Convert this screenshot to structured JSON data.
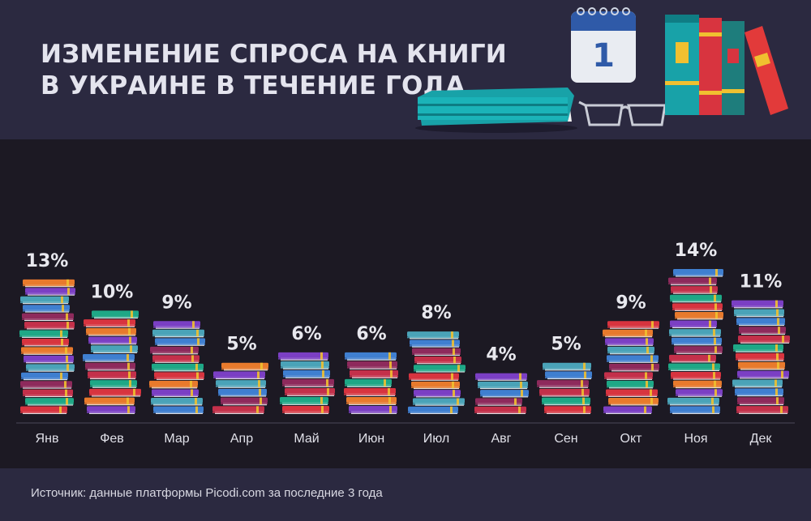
{
  "header": {
    "title_line1": "ИЗМЕНЕНИЕ СПРОСА НА КНИГИ",
    "title_line2": "В УКРАИНЕ В ТЕЧЕНИЕ ГОДА",
    "calendar_day": "1"
  },
  "footer": {
    "source": "Источник: данные платформы Picodi.com за последние 3 года"
  },
  "colors": {
    "header_bg": "#2b2940",
    "chart_bg": "#1c1923",
    "text": "#e8e8ee",
    "book_palette": [
      "#d8343f",
      "#8e2a5c",
      "#7b3fc4",
      "#1ea886",
      "#3f7fd0",
      "#e87a2c",
      "#c4304a",
      "#4aa3b8"
    ]
  },
  "chart_data": {
    "type": "bar",
    "title": "ИЗМЕНЕНИЕ СПРОСА НА КНИГИ В УКРАИНЕ В ТЕЧЕНИЕ ГОДА",
    "categories": [
      "Янв",
      "Фев",
      "Мар",
      "Апр",
      "Май",
      "Июн",
      "Июл",
      "Авг",
      "Сен",
      "Окт",
      "Ноя",
      "Дек"
    ],
    "values": [
      13,
      10,
      9,
      5,
      6,
      6,
      8,
      4,
      5,
      9,
      14,
      11
    ],
    "value_labels": [
      "13%",
      "10%",
      "9%",
      "5%",
      "6%",
      "6%",
      "8%",
      "4%",
      "5%",
      "9%",
      "14%",
      "11%"
    ],
    "unit": "%",
    "ylim": [
      0,
      14
    ],
    "grid": false,
    "legend": "none"
  }
}
